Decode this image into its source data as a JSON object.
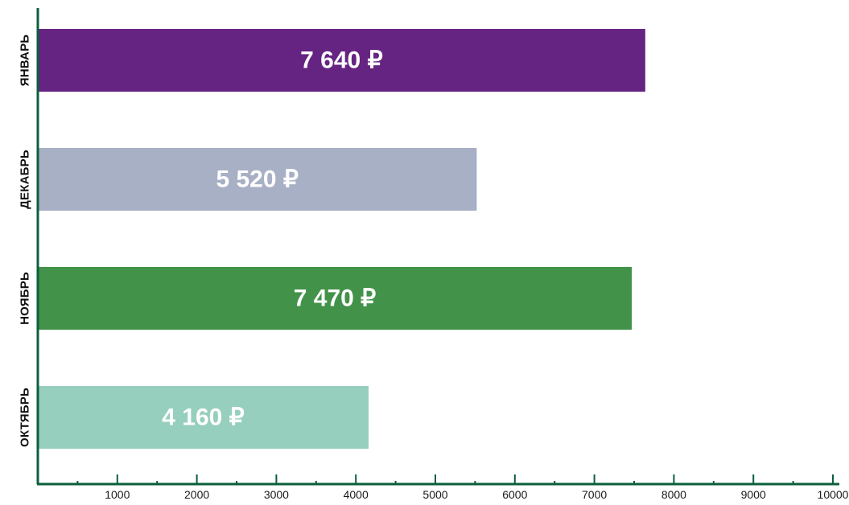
{
  "chart_data": {
    "type": "bar",
    "orientation": "horizontal",
    "categories": [
      "ЯНВАРЬ",
      "ДЕКАБРЬ",
      "НОЯБРЬ",
      "ОКТЯБРЬ"
    ],
    "values": [
      7640,
      5520,
      7470,
      4160
    ],
    "value_labels": [
      "7 640 ₽",
      "5 520 ₽",
      "7 470 ₽",
      "4 160 ₽"
    ],
    "colors": [
      "#662482",
      "#a8b0c5",
      "#42924a",
      "#96cfbd"
    ],
    "axis_color": "#0b5f3d",
    "xlim": [
      0,
      10000
    ],
    "xticks": [
      1000,
      2000,
      3000,
      4000,
      5000,
      6000,
      7000,
      8000,
      9000,
      10000
    ],
    "xtick_labels": [
      "1000",
      "2000",
      "3000",
      "4000",
      "5000",
      "6000",
      "7000",
      "8000",
      "9000",
      "10000"
    ],
    "minor_tick_step": 500,
    "grid": false,
    "legend": "none"
  }
}
